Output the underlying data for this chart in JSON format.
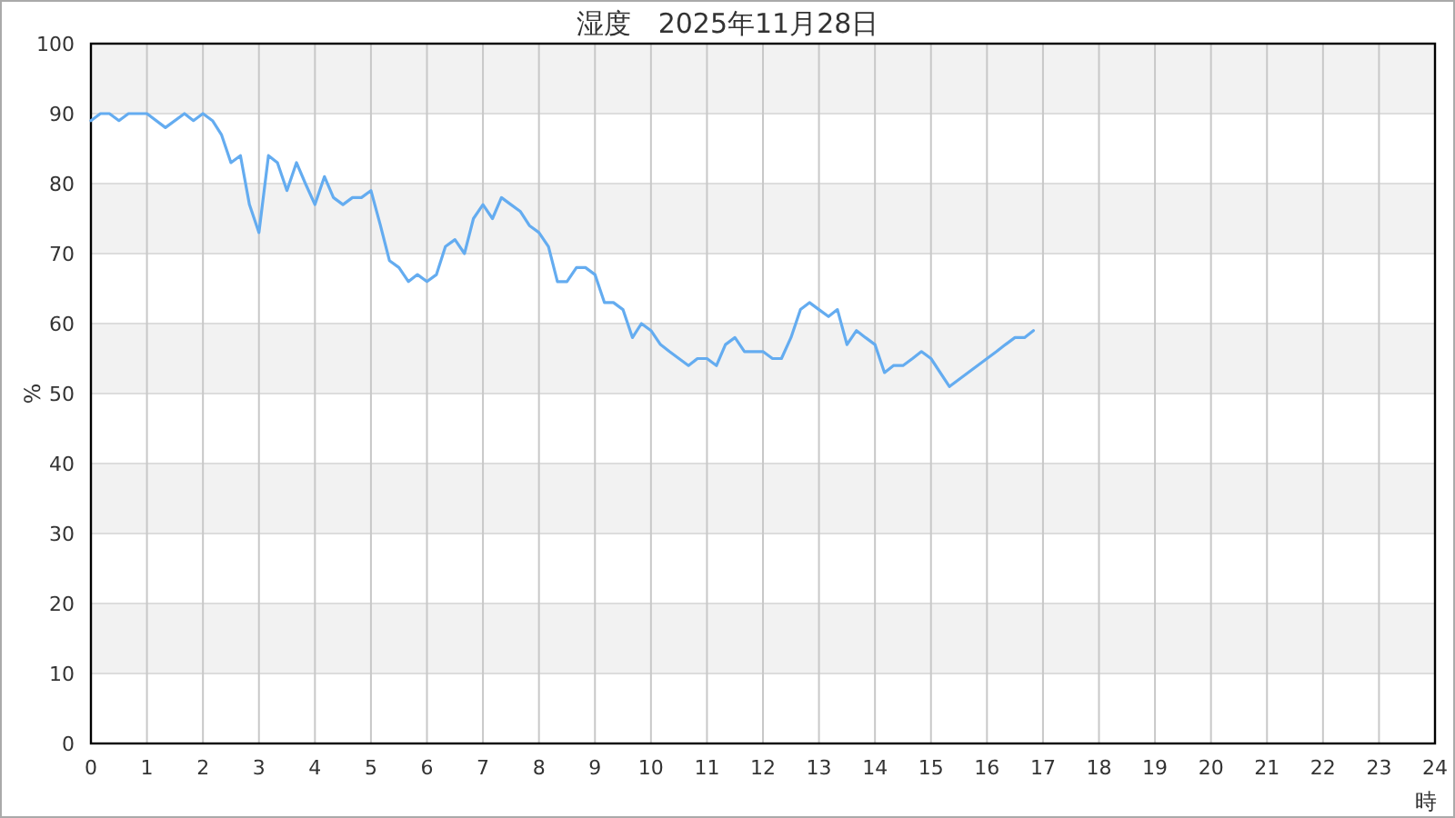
{
  "chart_data": {
    "type": "line",
    "title": "湿度　2025年11月28日",
    "xlabel": "時",
    "ylabel": "%",
    "x": [
      0,
      0.17,
      0.33,
      0.5,
      0.67,
      1,
      1.33,
      1.67,
      1.83,
      2,
      2.17,
      2.33,
      2.5,
      2.67,
      2.83,
      3,
      3.17,
      3.33,
      3.5,
      3.67,
      3.83,
      4,
      4.17,
      4.33,
      4.5,
      4.67,
      4.83,
      5,
      5.17,
      5.33,
      5.5,
      5.67,
      5.83,
      6,
      6.17,
      6.33,
      6.5,
      6.67,
      6.83,
      7,
      7.17,
      7.33,
      7.5,
      7.67,
      7.83,
      8,
      8.17,
      8.33,
      8.5,
      8.67,
      8.83,
      9,
      9.17,
      9.33,
      9.5,
      9.67,
      9.83,
      10,
      10.17,
      10.33,
      10.5,
      10.67,
      10.83,
      11,
      11.17,
      11.33,
      11.5,
      11.67,
      11.83,
      12,
      12.17,
      12.33,
      12.5,
      12.67,
      12.83,
      13,
      13.17,
      13.33,
      13.5,
      13.67,
      13.83,
      14,
      14.17,
      14.33,
      14.5,
      14.67,
      14.83,
      15,
      15.33,
      16,
      16.17,
      16.33,
      16.5,
      16.67,
      16.83
    ],
    "series": [
      {
        "color": "#64acf0",
        "values": [
          89,
          90,
          90,
          89,
          90,
          90,
          88,
          90,
          89,
          90,
          89,
          87,
          83,
          84,
          77,
          73,
          84,
          83,
          79,
          83,
          80,
          77,
          81,
          78,
          77,
          78,
          78,
          79,
          74,
          69,
          68,
          66,
          67,
          66,
          67,
          71,
          72,
          70,
          75,
          77,
          75,
          78,
          77,
          76,
          74,
          73,
          71,
          66,
          66,
          68,
          68,
          67,
          63,
          63,
          62,
          58,
          60,
          59,
          57,
          56,
          55,
          54,
          55,
          55,
          54,
          57,
          58,
          56,
          56,
          56,
          55,
          55,
          58,
          62,
          63,
          62,
          61,
          62,
          57,
          59,
          58,
          57,
          53,
          54,
          54,
          55,
          56,
          55,
          51,
          55,
          56,
          57,
          58,
          58,
          59
        ]
      }
    ],
    "xlim": [
      0,
      24
    ],
    "xticks": [
      0,
      1,
      2,
      3,
      4,
      5,
      6,
      7,
      8,
      9,
      10,
      11,
      12,
      13,
      14,
      15,
      16,
      17,
      18,
      19,
      20,
      21,
      22,
      23,
      24
    ],
    "ylim": [
      0,
      100
    ],
    "yticks": [
      0,
      10,
      20,
      30,
      40,
      50,
      60,
      70,
      80,
      90,
      100
    ],
    "grid": true,
    "bands": [
      {
        "axis": "y",
        "from": 90,
        "to": 100,
        "color": "#f2f2f2"
      },
      {
        "axis": "y",
        "from": 70,
        "to": 80,
        "color": "#f2f2f2"
      },
      {
        "axis": "y",
        "from": 50,
        "to": 60,
        "color": "#f2f2f2"
      },
      {
        "axis": "y",
        "from": 30,
        "to": 40,
        "color": "#f2f2f2"
      },
      {
        "axis": "y",
        "from": 10,
        "to": 20,
        "color": "#f2f2f2"
      }
    ]
  }
}
